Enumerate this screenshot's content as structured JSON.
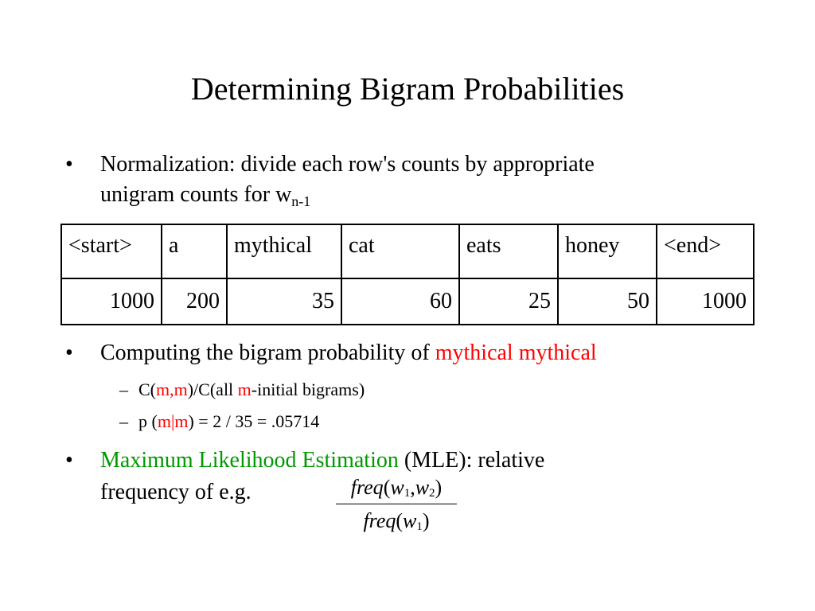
{
  "title": "Determining Bigram Probabilities",
  "bullets": {
    "b1": {
      "marker": "•",
      "line1": "Normalization:  divide each row's counts by appropriate",
      "line2_prefix": "unigram counts for w",
      "line2_sub": "n-1"
    },
    "b2": {
      "marker": "•",
      "prefix": "Computing the bigram probability of ",
      "highlight": "mythical mythical",
      "subs": {
        "s1": {
          "dash": "–",
          "a": "C(",
          "b": "m,m",
          "c": ")/C(all ",
          "d": "m",
          "e": "-initial bigrams)"
        },
        "s2": {
          "dash": "–",
          "a": "p (",
          "b": "m|m",
          "c": ") = 2 / 35 = .05714"
        }
      }
    },
    "b3": {
      "marker": "•",
      "highlight": "Maximum Likelihood Estimation",
      "rest": " (MLE): relative",
      "line2": "frequency of e.g."
    }
  },
  "table": {
    "headers": [
      "<start>",
      "a",
      "mythical",
      "cat",
      "eats",
      "honey",
      "<end>"
    ],
    "values": [
      "1000",
      "200",
      "35",
      "60",
      "25",
      "50",
      "1000"
    ]
  },
  "formula": {
    "numerator": {
      "fn": "freq",
      "open": "(",
      "w1": "w",
      "i1": "1",
      "comma": ",",
      "w2": "w",
      "i2": "2",
      "close": ")"
    },
    "denominator": {
      "fn": "freq",
      "open": "(",
      "w1": "w",
      "i1": "1",
      "close": ")"
    }
  },
  "colors": {
    "highlight_red": "#ff0000",
    "highlight_green": "#009900",
    "text": "#000000"
  }
}
